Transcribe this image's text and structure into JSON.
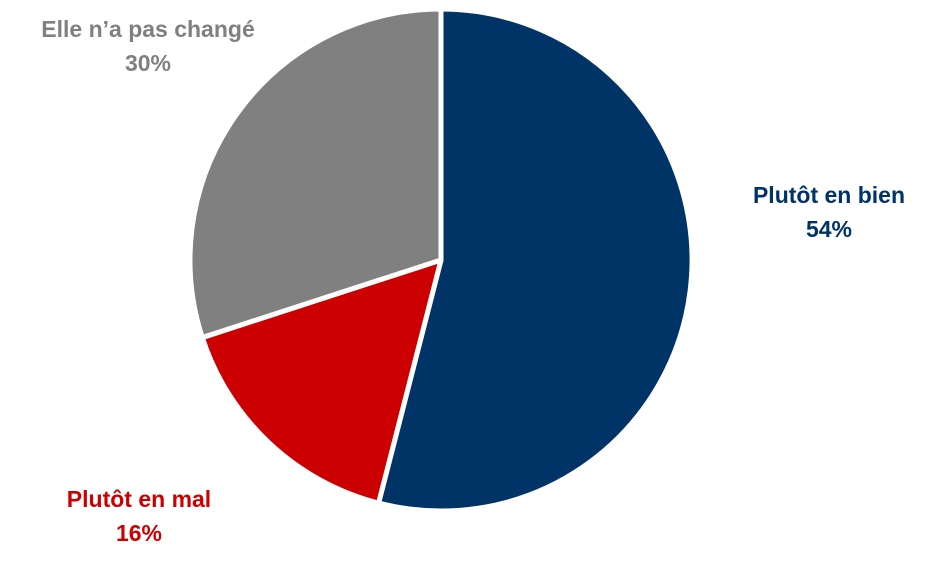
{
  "chart_data": {
    "type": "pie",
    "title": "",
    "legend": "none",
    "start_angle_deg": 0,
    "direction": "clockwise",
    "slices": [
      {
        "label": "Plutôt en bien",
        "value": 54,
        "value_label": "54%",
        "color": "#003366"
      },
      {
        "label": "Plutôt en mal",
        "value": 16,
        "value_label": "16%",
        "color": "#CC0000"
      },
      {
        "label": "Elle n’a pas changé",
        "value": 30,
        "value_label": "30%",
        "color": "#808080"
      }
    ]
  }
}
